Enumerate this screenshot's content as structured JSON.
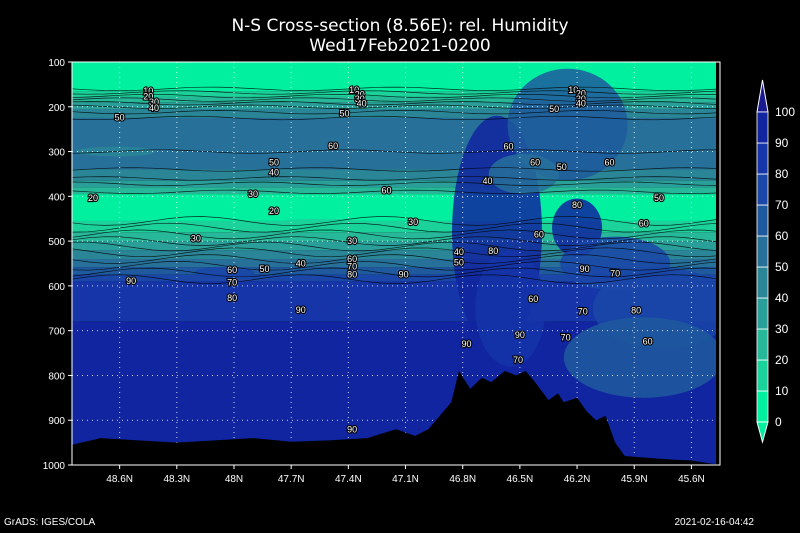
{
  "chart_data": {
    "type": "heatmap",
    "title": "N-S Cross-section (8.56E): rel. Humidity",
    "subtitle": "Wed17Feb2021-0200",
    "x_tick_labels": [
      "48.6N",
      "48.3N",
      "48N",
      "47.7N",
      "47.4N",
      "47.1N",
      "46.8N",
      "46.5N",
      "46.2N",
      "45.9N",
      "45.6N"
    ],
    "x_ticks_lat": [
      48.6,
      48.3,
      48.0,
      47.7,
      47.4,
      47.1,
      46.8,
      46.5,
      46.2,
      45.9,
      45.6
    ],
    "x_range_lat": [
      48.85,
      45.45
    ],
    "y_tick_labels": [
      "100",
      "200",
      "300",
      "400",
      "500",
      "600",
      "700",
      "800",
      "900",
      "1000"
    ],
    "y_ticks_hpa": [
      100,
      200,
      300,
      400,
      500,
      600,
      700,
      800,
      900,
      1000
    ],
    "y_range_hpa": [
      100,
      1000
    ],
    "colorbar": {
      "levels": [
        0,
        10,
        20,
        30,
        40,
        50,
        60,
        70,
        80,
        90,
        100
      ],
      "labels": [
        "0",
        "10",
        "20",
        "30",
        "40",
        "50",
        "60",
        "70",
        "80",
        "90",
        "100"
      ],
      "colors": [
        "#00f0a0",
        "#1ad29a",
        "#26b899",
        "#2a9e98",
        "#2a8596",
        "#27709a",
        "#1f5a9e",
        "#1a47a8",
        "#1535a8",
        "#10259f"
      ],
      "end_over_color": "#1a1a90",
      "end_under_color": "#00f0a0"
    },
    "grid": true,
    "contour_labels": [
      {
        "text": "10",
        "lat": 48.45,
        "p": 163
      },
      {
        "text": "20",
        "lat": 48.45,
        "p": 175
      },
      {
        "text": "30",
        "lat": 48.42,
        "p": 187
      },
      {
        "text": "40",
        "lat": 48.42,
        "p": 200
      },
      {
        "text": "50",
        "lat": 48.6,
        "p": 222
      },
      {
        "text": "10",
        "lat": 47.37,
        "p": 160
      },
      {
        "text": "20",
        "lat": 47.34,
        "p": 170
      },
      {
        "text": "30",
        "lat": 47.34,
        "p": 180
      },
      {
        "text": "40",
        "lat": 47.33,
        "p": 190
      },
      {
        "text": "50",
        "lat": 47.42,
        "p": 213
      },
      {
        "text": "10",
        "lat": 46.22,
        "p": 160
      },
      {
        "text": "20",
        "lat": 46.18,
        "p": 168
      },
      {
        "text": "30",
        "lat": 46.18,
        "p": 180
      },
      {
        "text": "40",
        "lat": 46.18,
        "p": 190
      },
      {
        "text": "50",
        "lat": 46.32,
        "p": 203
      },
      {
        "text": "60",
        "lat": 47.48,
        "p": 285
      },
      {
        "text": "60",
        "lat": 46.56,
        "p": 287
      },
      {
        "text": "60",
        "lat": 46.42,
        "p": 322
      },
      {
        "text": "50",
        "lat": 46.28,
        "p": 332
      },
      {
        "text": "60",
        "lat": 46.03,
        "p": 322
      },
      {
        "text": "50",
        "lat": 47.79,
        "p": 322
      },
      {
        "text": "40",
        "lat": 47.79,
        "p": 345
      },
      {
        "text": "30",
        "lat": 47.9,
        "p": 393
      },
      {
        "text": "20",
        "lat": 47.79,
        "p": 430
      },
      {
        "text": "60",
        "lat": 47.2,
        "p": 385
      },
      {
        "text": "40",
        "lat": 46.67,
        "p": 363
      },
      {
        "text": "80",
        "lat": 46.2,
        "p": 417
      },
      {
        "text": "50",
        "lat": 45.77,
        "p": 402
      },
      {
        "text": "60",
        "lat": 45.85,
        "p": 458
      },
      {
        "text": "20",
        "lat": 48.74,
        "p": 402
      },
      {
        "text": "30",
        "lat": 47.06,
        "p": 455
      },
      {
        "text": "30",
        "lat": 48.2,
        "p": 492
      },
      {
        "text": "30",
        "lat": 47.38,
        "p": 497
      },
      {
        "text": "60",
        "lat": 46.4,
        "p": 483
      },
      {
        "text": "40",
        "lat": 46.82,
        "p": 522
      },
      {
        "text": "80",
        "lat": 46.64,
        "p": 520
      },
      {
        "text": "50",
        "lat": 46.82,
        "p": 545
      },
      {
        "text": "40",
        "lat": 47.65,
        "p": 548
      },
      {
        "text": "50",
        "lat": 47.84,
        "p": 560
      },
      {
        "text": "60",
        "lat": 48.01,
        "p": 562
      },
      {
        "text": "70",
        "lat": 48.01,
        "p": 590
      },
      {
        "text": "80",
        "lat": 48.01,
        "p": 625
      },
      {
        "text": "90",
        "lat": 48.54,
        "p": 587
      },
      {
        "text": "60",
        "lat": 47.38,
        "p": 538
      },
      {
        "text": "70",
        "lat": 47.38,
        "p": 555
      },
      {
        "text": "80",
        "lat": 47.38,
        "p": 572
      },
      {
        "text": "90",
        "lat": 47.11,
        "p": 572
      },
      {
        "text": "90",
        "lat": 46.16,
        "p": 560
      },
      {
        "text": "70",
        "lat": 46.0,
        "p": 570
      },
      {
        "text": "60",
        "lat": 46.43,
        "p": 627
      },
      {
        "text": "70",
        "lat": 46.17,
        "p": 655
      },
      {
        "text": "80",
        "lat": 45.89,
        "p": 653
      },
      {
        "text": "70",
        "lat": 46.26,
        "p": 713
      },
      {
        "text": "90",
        "lat": 47.65,
        "p": 652
      },
      {
        "text": "90",
        "lat": 46.5,
        "p": 707
      },
      {
        "text": "90",
        "lat": 46.78,
        "p": 727
      },
      {
        "text": "60",
        "lat": 45.83,
        "p": 722
      },
      {
        "text": "70",
        "lat": 46.51,
        "p": 763
      },
      {
        "text": "90",
        "lat": 47.38,
        "p": 918
      }
    ],
    "terrain_top_hpa": [
      [
        48.85,
        955
      ],
      [
        48.7,
        940
      ],
      [
        48.5,
        945
      ],
      [
        48.3,
        950
      ],
      [
        48.1,
        945
      ],
      [
        47.9,
        940
      ],
      [
        47.7,
        948
      ],
      [
        47.5,
        945
      ],
      [
        47.3,
        940
      ],
      [
        47.15,
        920
      ],
      [
        47.05,
        935
      ],
      [
        46.98,
        920
      ],
      [
        46.92,
        890
      ],
      [
        46.86,
        860
      ],
      [
        46.82,
        790
      ],
      [
        46.76,
        830
      ],
      [
        46.7,
        805
      ],
      [
        46.65,
        815
      ],
      [
        46.58,
        790
      ],
      [
        46.52,
        800
      ],
      [
        46.47,
        790
      ],
      [
        46.42,
        815
      ],
      [
        46.35,
        855
      ],
      [
        46.3,
        840
      ],
      [
        46.27,
        860
      ],
      [
        46.2,
        850
      ],
      [
        46.15,
        880
      ],
      [
        46.1,
        900
      ],
      [
        46.05,
        890
      ],
      [
        46.0,
        950
      ],
      [
        45.95,
        980
      ],
      [
        45.8,
        985
      ],
      [
        45.7,
        988
      ],
      [
        45.6,
        990
      ],
      [
        45.45,
        1000
      ]
    ]
  },
  "footer": {
    "left": "GrADS: IGES/COLA",
    "right": "2021-02-16-04:42"
  }
}
